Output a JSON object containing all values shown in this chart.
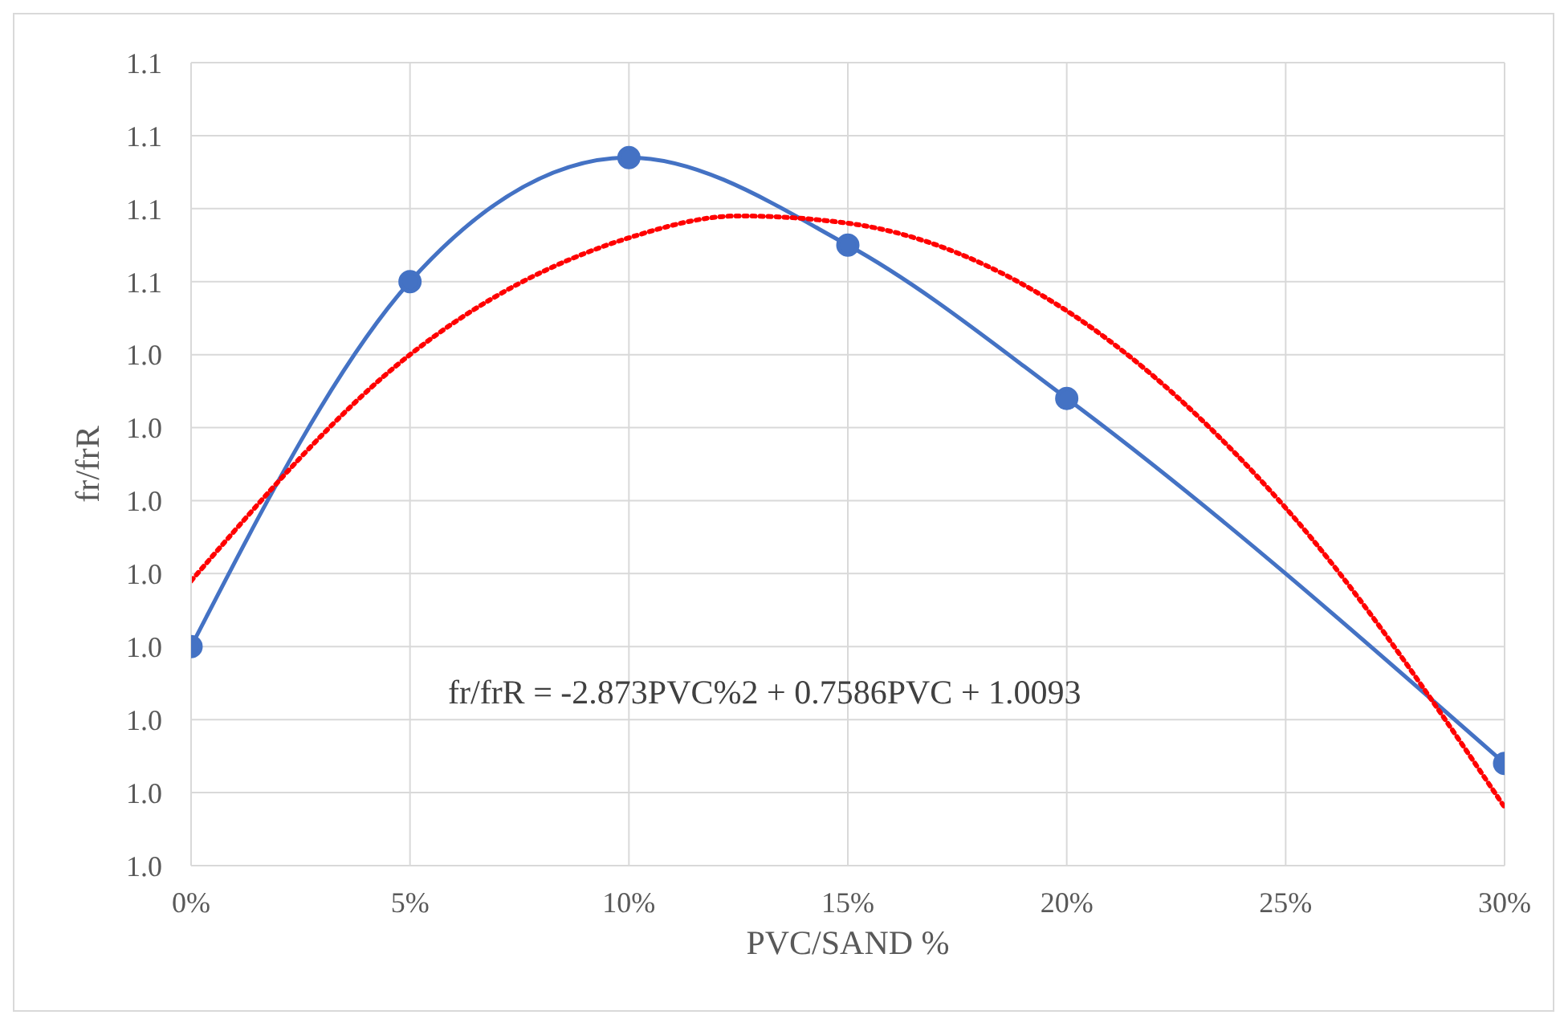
{
  "chart_data": {
    "type": "line",
    "xlabel": "PVC/SAND %",
    "ylabel": "fr/frR",
    "series": [
      {
        "type": "line",
        "color": "#4472c4",
        "x": [
          0,
          0.05,
          0.1,
          0.15,
          0.2,
          0.3
        ],
        "values": [
          1.0,
          1.05,
          1.067,
          1.055,
          1.034,
          0.984
        ],
        "marker": "circle",
        "line_style": "solid"
      },
      {
        "type": "line",
        "color": "#ff0000",
        "x": [
          0,
          0.05,
          0.1,
          0.125,
          0.15,
          0.2,
          0.25,
          0.3
        ],
        "values": [
          1.009,
          1.04,
          1.056,
          1.059,
          1.058,
          1.046,
          1.019,
          0.978
        ],
        "marker": "none",
        "line_style": "dotted"
      }
    ],
    "xlim": [
      0,
      0.3
    ],
    "xticks": [
      {
        "value": 0,
        "label": "0%"
      },
      {
        "value": 0.05,
        "label": "5%"
      },
      {
        "value": 0.1,
        "label": "10%"
      },
      {
        "value": 0.15,
        "label": "15%"
      },
      {
        "value": 0.2,
        "label": "20%"
      },
      {
        "value": 0.25,
        "label": "25%"
      },
      {
        "value": 0.3,
        "label": "30%"
      }
    ],
    "ylim": [
      0.97,
      1.08
    ],
    "yticks": [
      {
        "value": 0.97,
        "label": "1.0"
      },
      {
        "value": 0.98,
        "label": "1.0"
      },
      {
        "value": 0.99,
        "label": "1.0"
      },
      {
        "value": 1.0,
        "label": "1.0"
      },
      {
        "value": 1.01,
        "label": "1.0"
      },
      {
        "value": 1.02,
        "label": "1.0"
      },
      {
        "value": 1.03,
        "label": "1.0"
      },
      {
        "value": 1.04,
        "label": "1.0"
      },
      {
        "value": 1.05,
        "label": "1.1"
      },
      {
        "value": 1.06,
        "label": "1.1"
      },
      {
        "value": 1.07,
        "label": "1.1"
      },
      {
        "value": 1.08,
        "label": "1.1"
      }
    ],
    "grid": true,
    "annotations": [
      "fr/frR = -2.873PVC%2 + 0.7586PVC + 1.0093"
    ]
  }
}
